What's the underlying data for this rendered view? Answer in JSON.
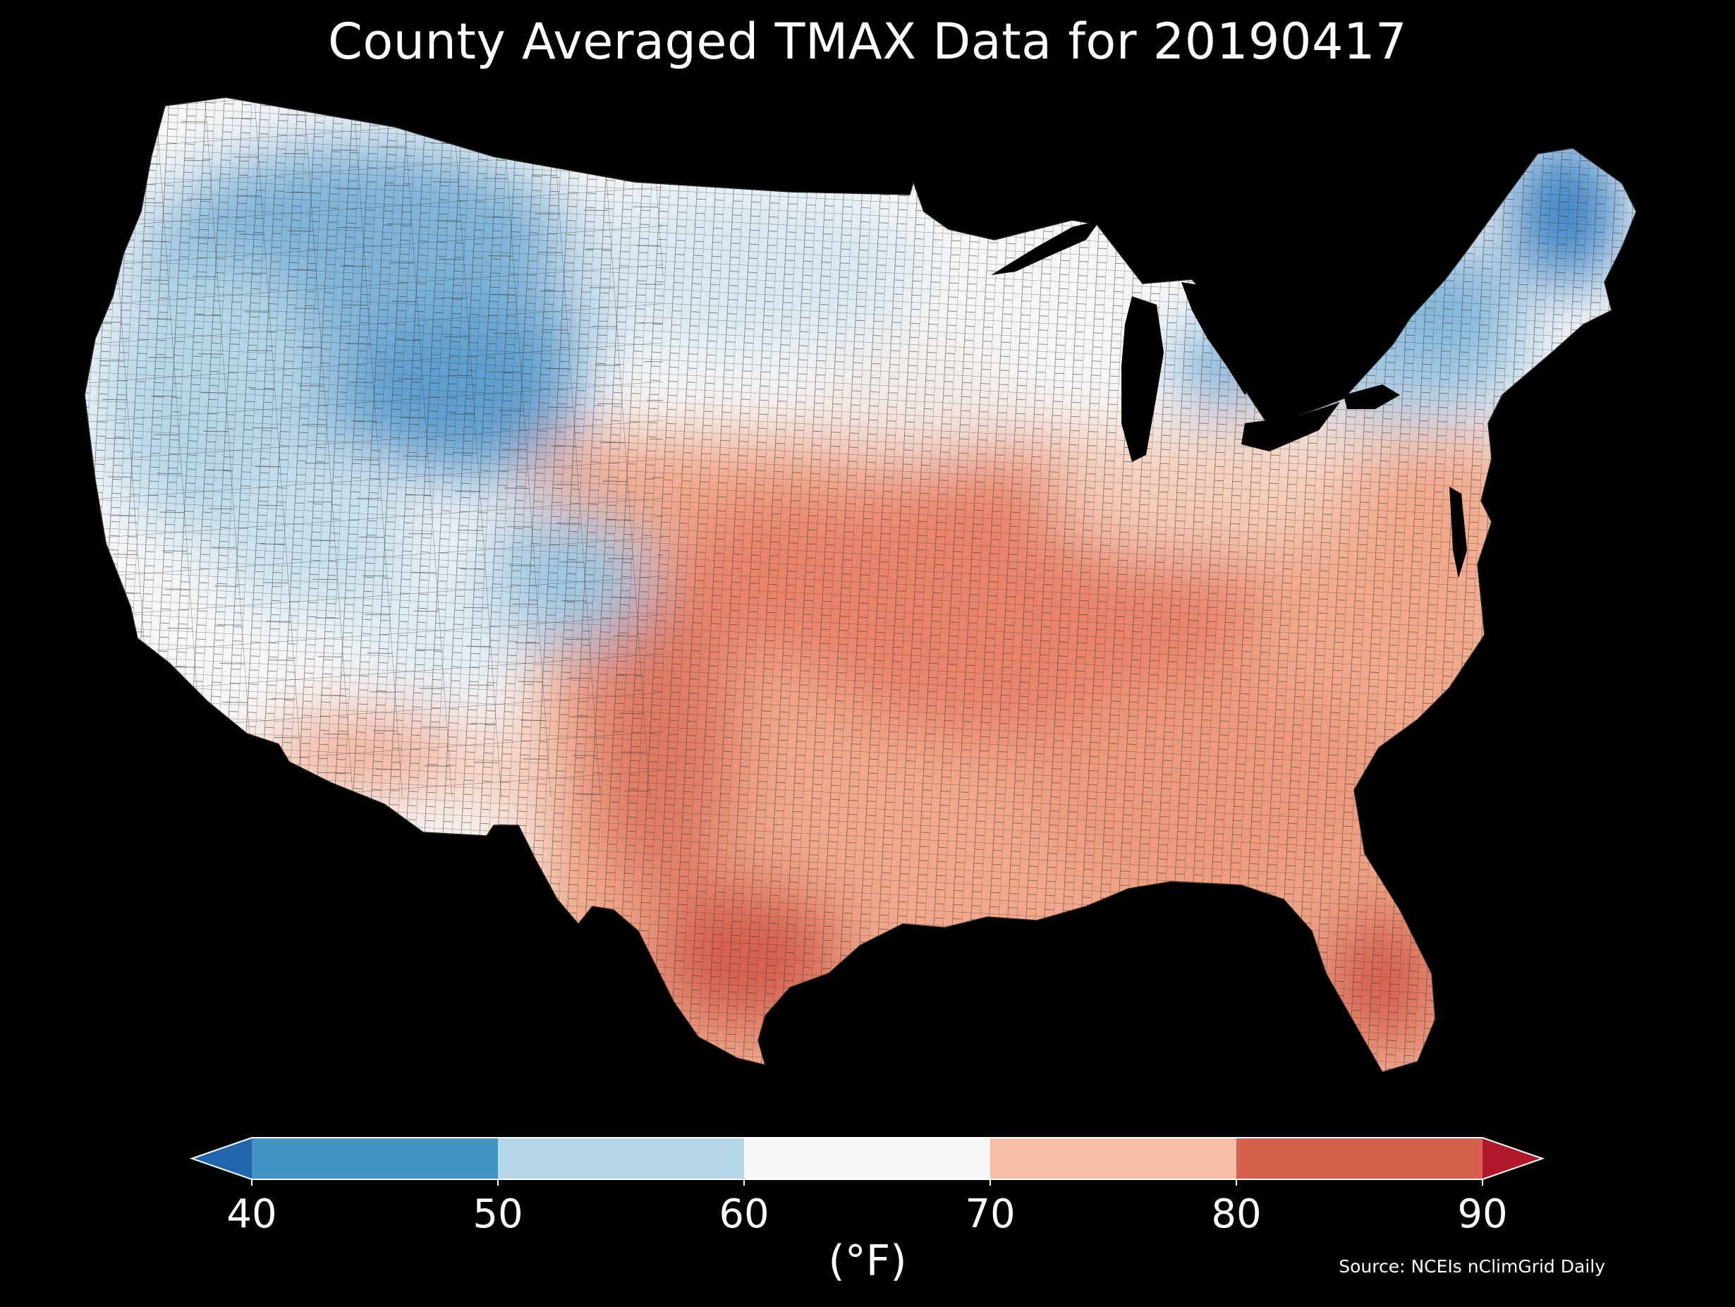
{
  "title": "County Averaged TMAX Data for 20190417",
  "source": "Source: NCEIs nClimGrid Daily",
  "colorbar": {
    "unit_label": "(°F)",
    "ticks": [
      "40",
      "50",
      "60",
      "70",
      "80",
      "90"
    ],
    "bins": [
      {
        "range": "<40",
        "color": "#2166ac"
      },
      {
        "range": "40-50",
        "color": "#4393c3"
      },
      {
        "range": "50-60",
        "color": "#b6d7e8"
      },
      {
        "range": "60-70",
        "color": "#f7f7f7"
      },
      {
        "range": "70-80",
        "color": "#f7bfa3"
      },
      {
        "range": "80-90",
        "color": "#d6604d"
      },
      {
        "range": ">90",
        "color": "#b2182b"
      }
    ]
  },
  "colors": {
    "background": "#000000",
    "text": "#ffffff",
    "county_border": "#333333"
  },
  "map": {
    "region": "Contiguous United States",
    "unit": "county",
    "variable": "TMAX"
  }
}
